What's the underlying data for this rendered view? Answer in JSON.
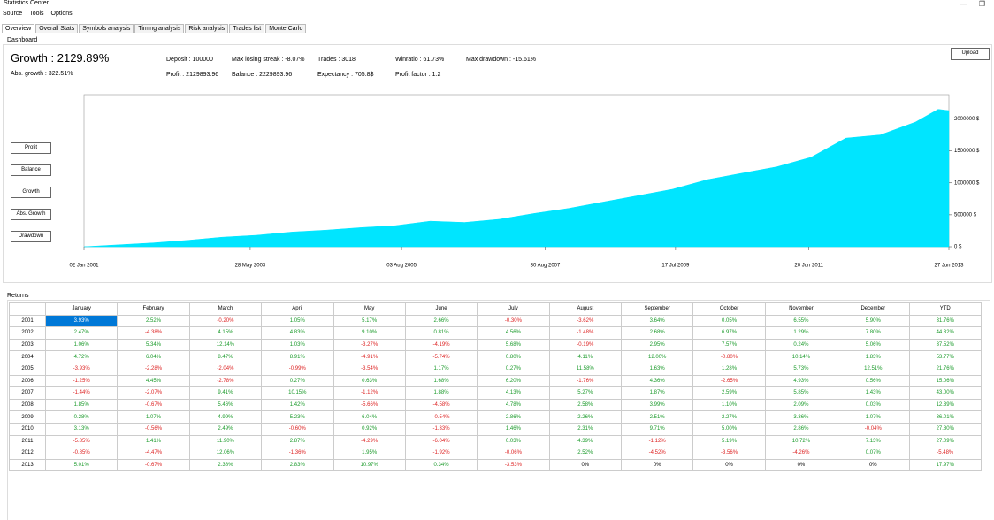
{
  "window": {
    "title": "Statistics Center"
  },
  "menu": [
    "Source",
    "Tools",
    "Options"
  ],
  "tabs": [
    "Overview",
    "Overall Stats",
    "Symbols analysis",
    "Timing analysis",
    "Risk analysis",
    "Trades list",
    "Monte Carlo"
  ],
  "dashboard": {
    "label": "Dashboard",
    "growth": "Growth : 2129.89%",
    "abs_growth": "Abs. growth : 322.51%",
    "stats": [
      "Deposit : 100000",
      "Max losing streak : -8.07%",
      "Trades : 3018",
      "Winratio : 61.73%",
      "Max drawdown : -15.61%",
      "Profit : 2129893.96",
      "Balance : 2229893.96",
      "Expectancy : 705.8$",
      "Profit factor : 1.2"
    ],
    "upload": "Upload",
    "buttons": [
      "Profit",
      "Balance",
      "Growth",
      "Abs. Growth",
      "Drawdown"
    ]
  },
  "chart_data": {
    "type": "area",
    "color": "#00e5ff",
    "x": [
      "2001-01-02",
      "2001-07-01",
      "2002-01-01",
      "2002-07-01",
      "2003-01-01",
      "2003-07-01",
      "2004-01-01",
      "2004-07-01",
      "2005-01-01",
      "2005-07-01",
      "2006-01-01",
      "2006-07-01",
      "2007-01-01",
      "2007-07-01",
      "2008-01-01",
      "2008-07-01",
      "2009-01-01",
      "2009-07-01",
      "2010-01-01",
      "2010-07-01",
      "2011-01-01",
      "2011-07-01",
      "2012-01-01",
      "2012-07-01",
      "2013-01-01",
      "2013-05-01",
      "2013-06-27"
    ],
    "values": [
      0,
      30000,
      60000,
      100000,
      150000,
      180000,
      230000,
      260000,
      300000,
      330000,
      400000,
      380000,
      430000,
      520000,
      600000,
      700000,
      800000,
      900000,
      1050000,
      1150000,
      1250000,
      1400000,
      1700000,
      1750000,
      1950000,
      2150000,
      2130000
    ],
    "xlim": [
      "2001-01-02",
      "2013-06-27"
    ],
    "xticks": [
      {
        "value": "2001-01-02",
        "label": "02 Jan 2001"
      },
      {
        "value": "2003-05-28",
        "label": "28 May 2003"
      },
      {
        "value": "2005-08-03",
        "label": "03 Aug 2005"
      },
      {
        "value": "2007-08-30",
        "label": "30 Aug 2007"
      },
      {
        "value": "2009-07-17",
        "label": "17 Jul 2009"
      },
      {
        "value": "2011-06-20",
        "label": "20 Jun 2011"
      },
      {
        "value": "2013-06-27",
        "label": "27 Jun 2013"
      }
    ],
    "ylim": [
      0,
      2380000
    ],
    "yticks": [
      {
        "value": 0,
        "label": "0 $"
      },
      {
        "value": 500000,
        "label": "500000 $"
      },
      {
        "value": 1000000,
        "label": "1000000 $"
      },
      {
        "value": 1500000,
        "label": "1500000 $"
      },
      {
        "value": 2000000,
        "label": "2000000 $"
      }
    ]
  },
  "returns": {
    "label": "Returns",
    "columns": [
      "January",
      "February",
      "March",
      "April",
      "May",
      "June",
      "July",
      "August",
      "September",
      "October",
      "November",
      "December",
      "YTD"
    ],
    "rows": [
      [
        "2001",
        "3.93%",
        "2.52%",
        "-0.20%",
        "1.05%",
        "5.17%",
        "2.66%",
        "-0.30%",
        "-3.62%",
        "3.64%",
        "0.05%",
        "6.55%",
        "5.90%",
        "31.76%"
      ],
      [
        "2002",
        "2.47%",
        "-4.38%",
        "4.15%",
        "4.83%",
        "9.10%",
        "0.81%",
        "4.56%",
        "-1.48%",
        "2.68%",
        "6.97%",
        "1.29%",
        "7.80%",
        "44.32%"
      ],
      [
        "2003",
        "1.06%",
        "5.34%",
        "12.14%",
        "1.03%",
        "-3.27%",
        "-4.19%",
        "5.68%",
        "-0.19%",
        "2.95%",
        "7.57%",
        "0.24%",
        "5.06%",
        "37.52%"
      ],
      [
        "2004",
        "4.72%",
        "6.04%",
        "8.47%",
        "8.91%",
        "-4.91%",
        "-5.74%",
        "0.80%",
        "4.11%",
        "12.00%",
        "-0.80%",
        "10.14%",
        "1.83%",
        "53.77%"
      ],
      [
        "2005",
        "-3.93%",
        "-2.28%",
        "-2.04%",
        "-0.99%",
        "-3.54%",
        "1.17%",
        "0.27%",
        "11.58%",
        "1.63%",
        "1.28%",
        "5.73%",
        "12.51%",
        "21.76%"
      ],
      [
        "2006",
        "-1.25%",
        "4.45%",
        "-2.78%",
        "0.27%",
        "0.63%",
        "1.68%",
        "6.20%",
        "-1.76%",
        "4.36%",
        "-2.65%",
        "4.93%",
        "0.56%",
        "15.06%"
      ],
      [
        "2007",
        "-1.44%",
        "-2.07%",
        "9.41%",
        "10.15%",
        "-1.12%",
        "1.88%",
        "4.13%",
        "5.27%",
        "1.87%",
        "2.59%",
        "5.85%",
        "1.43%",
        "43.00%"
      ],
      [
        "2008",
        "1.85%",
        "-0.67%",
        "5.46%",
        "1.42%",
        "-5.66%",
        "-4.58%",
        "4.78%",
        "2.58%",
        "3.99%",
        "1.10%",
        "2.09%",
        "0.03%",
        "12.39%"
      ],
      [
        "2009",
        "0.28%",
        "1.07%",
        "4.99%",
        "5.23%",
        "6.04%",
        "-0.54%",
        "2.86%",
        "2.26%",
        "2.51%",
        "2.27%",
        "3.36%",
        "1.07%",
        "36.01%"
      ],
      [
        "2010",
        "3.13%",
        "-0.56%",
        "2.49%",
        "-0.60%",
        "0.92%",
        "-1.33%",
        "1.46%",
        "2.31%",
        "9.71%",
        "5.00%",
        "2.86%",
        "-0.04%",
        "27.80%"
      ],
      [
        "2011",
        "-5.85%",
        "1.41%",
        "11.90%",
        "2.87%",
        "-4.29%",
        "-6.04%",
        "0.03%",
        "4.39%",
        "-1.12%",
        "5.19%",
        "10.72%",
        "7.13%",
        "27.09%"
      ],
      [
        "2012",
        "-0.85%",
        "-4.47%",
        "12.06%",
        "-1.36%",
        "1.95%",
        "-1.92%",
        "-0.06%",
        "2.52%",
        "-4.52%",
        "-3.56%",
        "-4.26%",
        "0.07%",
        "-5.48%"
      ],
      [
        "2013",
        "5.01%",
        "-0.67%",
        "2.38%",
        "2.83%",
        "10.97%",
        "0.34%",
        "-3.53%",
        "0%",
        "0%",
        "0%",
        "0%",
        "0%",
        "17.97%"
      ]
    ]
  }
}
